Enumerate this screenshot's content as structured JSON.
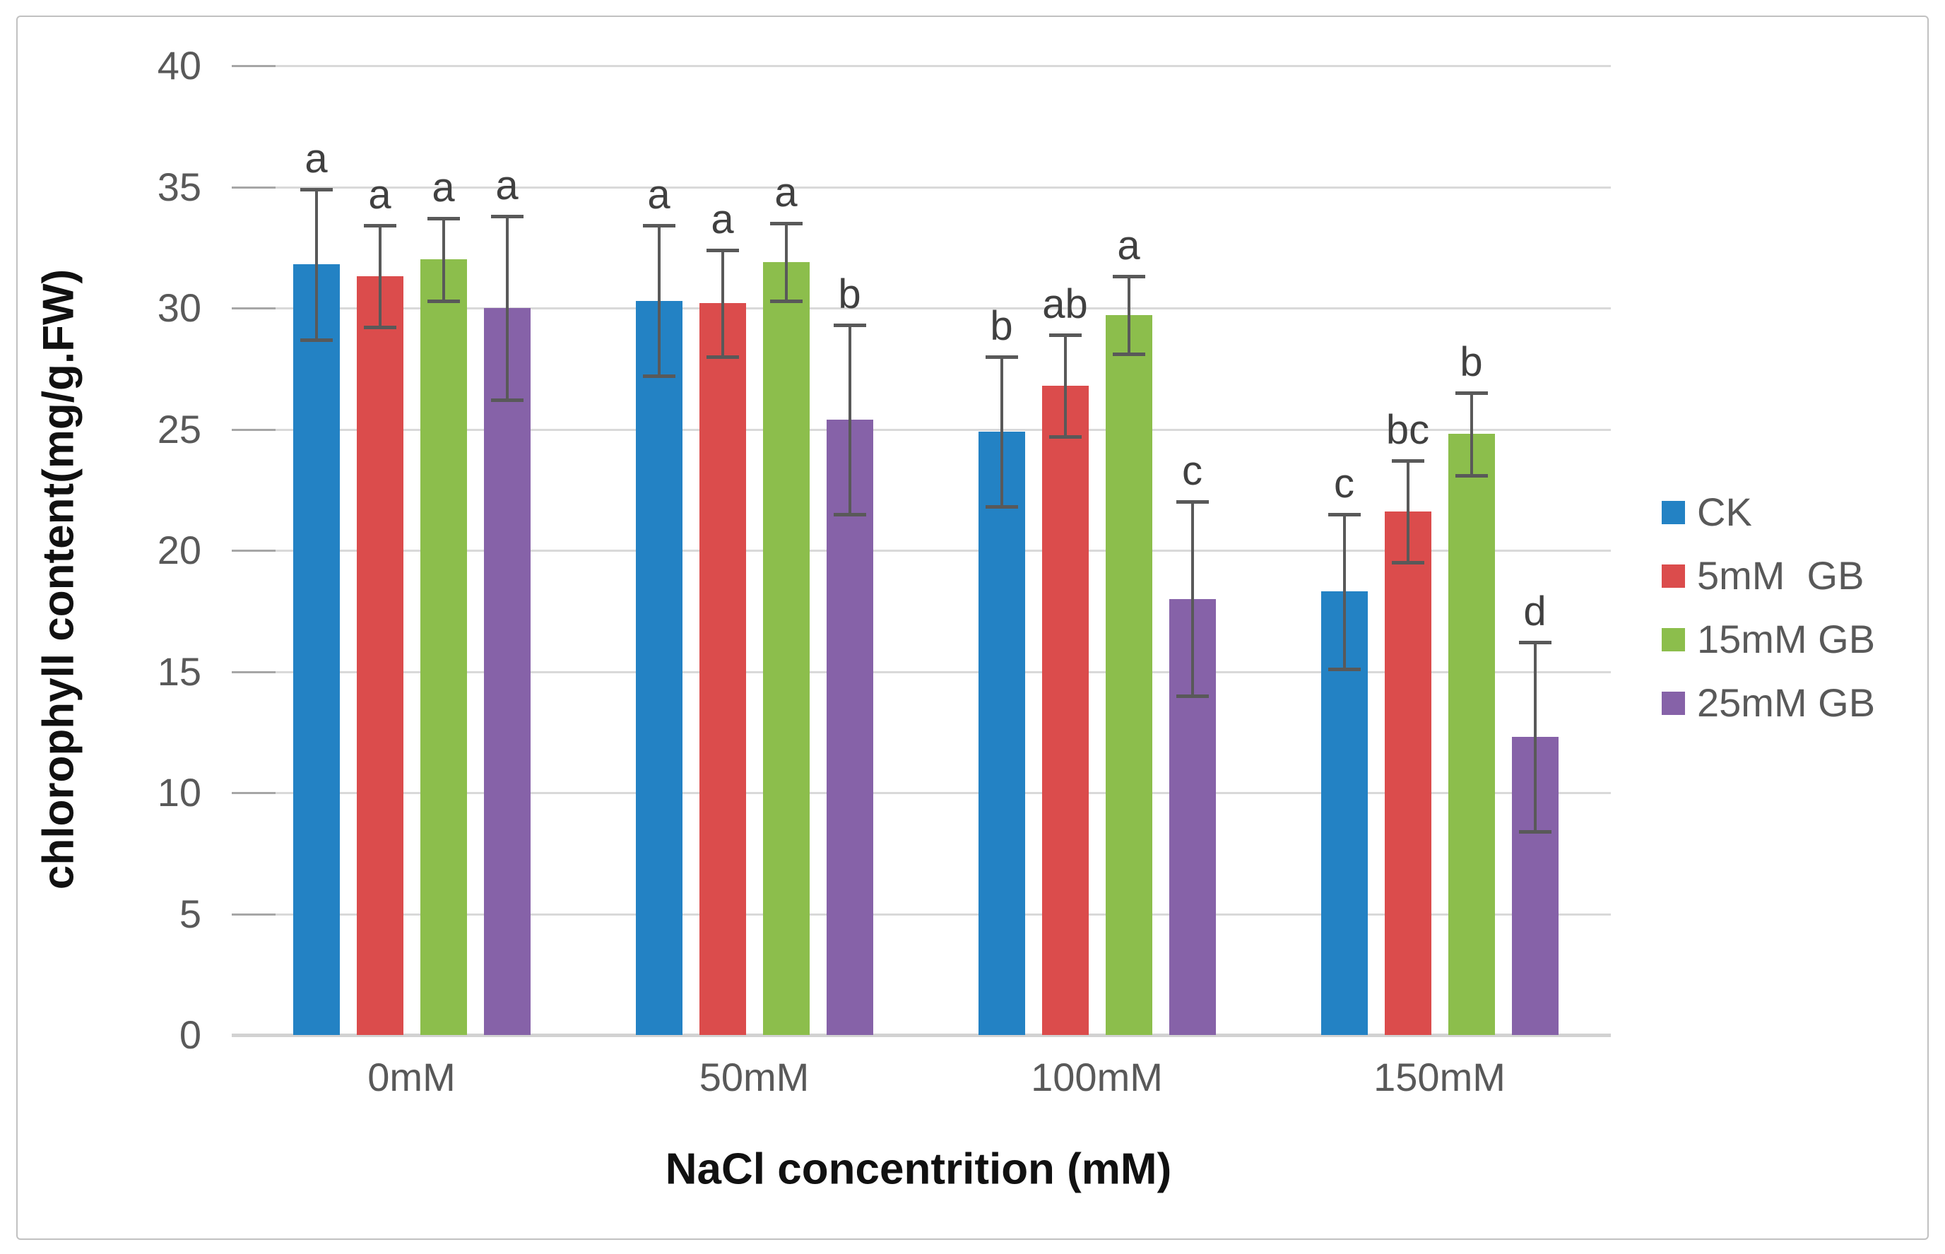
{
  "figure": {
    "background": "#ffffff",
    "border_color": "#c1c1c1"
  },
  "chart_data": {
    "type": "bar",
    "title": "",
    "xlabel": "NaCl concentrition (mM)",
    "ylabel": "chlorophyll content(mg/g.FW)",
    "ylim": [
      0,
      40
    ],
    "yticks": [
      0,
      5,
      10,
      15,
      20,
      25,
      30,
      35,
      40
    ],
    "grid": true,
    "legend_position": "right",
    "error_bar_color": "#595959",
    "categories": [
      "0mM",
      "50mM",
      "100mM",
      "150mM"
    ],
    "series": [
      {
        "name": "CK",
        "color": "#2382c4",
        "values": [
          31.8,
          30.3,
          24.9,
          18.3
        ],
        "errors": [
          3.1,
          3.1,
          3.1,
          3.2
        ],
        "sig_letters": [
          "a",
          "a",
          "b",
          "c"
        ]
      },
      {
        "name": "5mM  GB",
        "color": "#db4c4c",
        "values": [
          31.3,
          30.2,
          26.8,
          21.6
        ],
        "errors": [
          2.1,
          2.2,
          2.1,
          2.1
        ],
        "sig_letters": [
          "a",
          "a",
          "ab",
          "bc"
        ]
      },
      {
        "name": "15mM GB",
        "color": "#8cbe4c",
        "values": [
          32.0,
          31.9,
          29.7,
          24.8
        ],
        "errors": [
          1.7,
          1.6,
          1.6,
          1.7
        ],
        "sig_letters": [
          "a",
          "a",
          "a",
          "b"
        ]
      },
      {
        "name": "25mM GB",
        "color": "#8662a8",
        "values": [
          30.0,
          25.4,
          18.0,
          12.3
        ],
        "errors": [
          3.8,
          3.9,
          4.0,
          3.9
        ],
        "sig_letters": [
          "a",
          "b",
          "c",
          "d"
        ]
      }
    ]
  }
}
